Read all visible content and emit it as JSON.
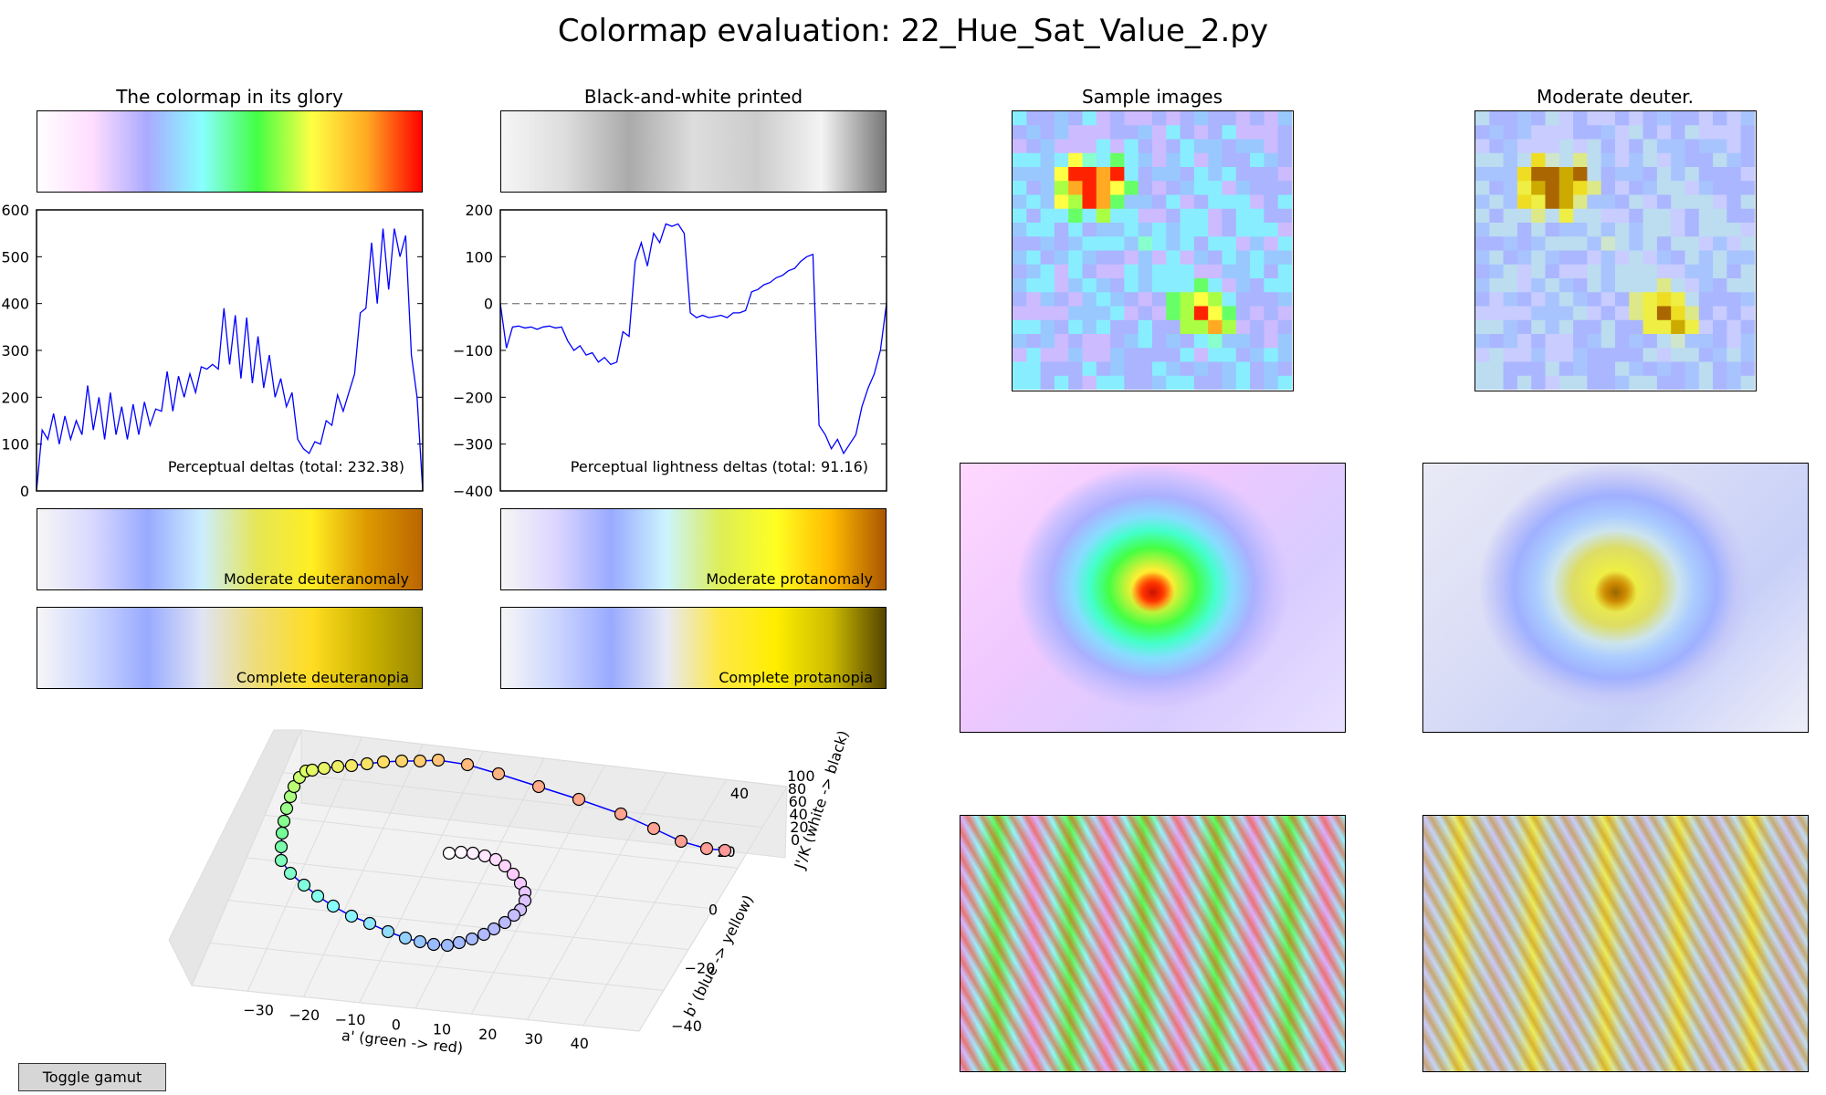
{
  "page": {
    "title": "Colormap evaluation: 22_Hue_Sat_Value_2.py",
    "panel_titles": {
      "glory": "The colormap in its glory",
      "bw": "Black-and-white printed",
      "samples": "Sample images",
      "deuter": "Moderate deuter."
    },
    "bar_labels": {
      "mod_deut": "Moderate deuteranomaly",
      "mod_prot": "Moderate protanomaly",
      "comp_deut": "Complete deuteranopia",
      "comp_prot": "Complete protanopia"
    },
    "toggle_button": "Toggle gamut",
    "colors": {
      "line": "#0000ff",
      "zero_line": "#888888",
      "colormap": [
        "#ffffff",
        "#ffddff",
        "#aaaaff",
        "#88ffff",
        "#44ff44",
        "#ffff44",
        "#ffaa22",
        "#ff0000"
      ],
      "bw": [
        "#f6f6f6",
        "#dddddd",
        "#aaaaaa",
        "#dddddd",
        "#cccccc",
        "#f4f4f4",
        "#777777"
      ],
      "mod_deut": [
        "#f6f6f6",
        "#d9d9ff",
        "#99aaff",
        "#cceeff",
        "#e6e655",
        "#ffee22",
        "#dd9900",
        "#bb6600"
      ],
      "mod_prot": [
        "#f6f6f6",
        "#dcd6ff",
        "#99aaff",
        "#ccf4ff",
        "#ddee55",
        "#ffff22",
        "#ffbb00",
        "#aa5500"
      ],
      "comp_deut": [
        "#f6f6f6",
        "#ccd6ff",
        "#99aaff",
        "#e0e4f4",
        "#eedd77",
        "#ffdd22",
        "#ccb300",
        "#998800"
      ],
      "comp_prot": [
        "#f6f6f6",
        "#ccd6ff",
        "#99aaff",
        "#e6e9f6",
        "#ffe844",
        "#ffee00",
        "#ccbb00",
        "#554400"
      ]
    }
  },
  "chart_data": [
    {
      "type": "line",
      "id": "perceptual_deltas",
      "annotation": "Perceptual deltas (total: 232.38)",
      "ylim": [
        0,
        600
      ],
      "yticks": [
        "0",
        "100",
        "200",
        "300",
        "400",
        "500",
        "600"
      ],
      "y": [
        0,
        130,
        110,
        165,
        100,
        160,
        110,
        150,
        120,
        225,
        130,
        200,
        110,
        210,
        120,
        180,
        110,
        185,
        120,
        190,
        140,
        175,
        170,
        255,
        170,
        245,
        200,
        250,
        210,
        265,
        260,
        270,
        260,
        390,
        270,
        375,
        240,
        370,
        230,
        330,
        220,
        290,
        200,
        240,
        180,
        210,
        110,
        90,
        80,
        105,
        100,
        150,
        140,
        205,
        170,
        210,
        250,
        380,
        390,
        530,
        400,
        560,
        430,
        560,
        500,
        545,
        290,
        200,
        0
      ]
    },
    {
      "type": "line",
      "id": "lightness_deltas",
      "annotation": "Perceptual lightness deltas (total: 91.16)",
      "ylim": [
        -400,
        200
      ],
      "yticks": [
        "−400",
        "−300",
        "−200",
        "−100",
        "0",
        "100",
        "200"
      ],
      "zero_line": true,
      "y": [
        0,
        -95,
        -50,
        -48,
        -52,
        -50,
        -55,
        -50,
        -48,
        -52,
        -50,
        -80,
        -100,
        -90,
        -110,
        -105,
        -125,
        -115,
        -130,
        -125,
        -60,
        -70,
        90,
        130,
        80,
        150,
        130,
        170,
        165,
        170,
        150,
        -20,
        -30,
        -25,
        -30,
        -28,
        -25,
        -30,
        -20,
        -20,
        -15,
        25,
        30,
        40,
        45,
        55,
        60,
        70,
        75,
        90,
        100,
        105,
        -260,
        -280,
        -310,
        -290,
        -320,
        -300,
        -280,
        -220,
        -180,
        -150,
        -100,
        0
      ]
    },
    {
      "type": "scatter",
      "id": "cam02ucs_path",
      "xlabel": "a' (green -> red)",
      "ylabel": "b' (blue -> yellow)",
      "zlabel": "J'/K (white -> black)",
      "xticks": [
        "−30",
        "−20",
        "−10",
        "0",
        "10",
        "20",
        "30",
        "40"
      ],
      "yticks": [
        "−40",
        "−20",
        "0",
        "20",
        "40"
      ],
      "zticks": [
        "0",
        "20",
        "40",
        "60",
        "80",
        "100"
      ]
    }
  ]
}
